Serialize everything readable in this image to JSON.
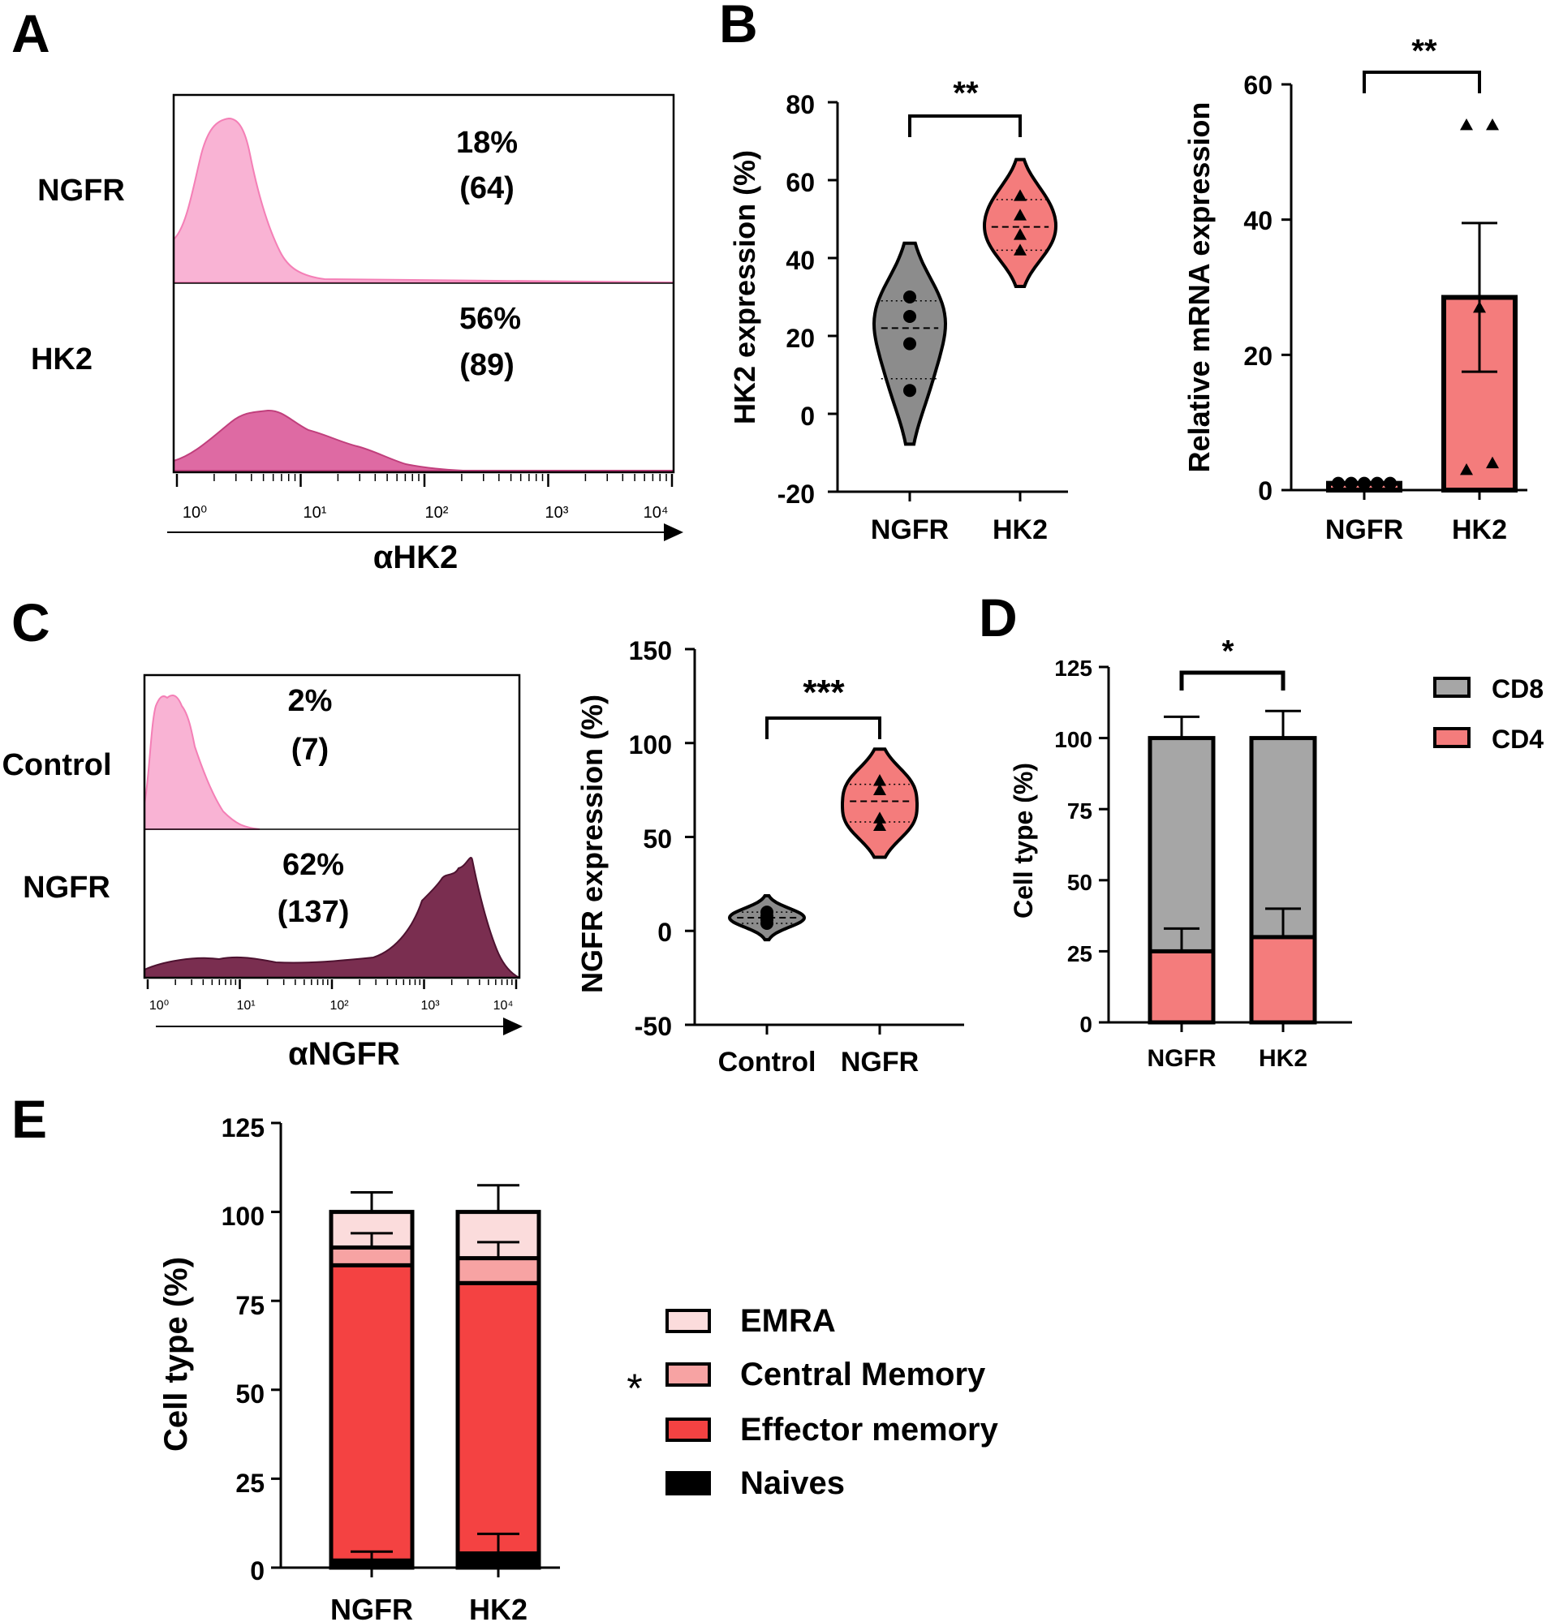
{
  "panel_labels": {
    "A": "A",
    "B": "B",
    "C": "C",
    "D": "D",
    "E": "E"
  },
  "chart_data": [
    {
      "id": "A",
      "type": "histogram",
      "xlabel": "αHK2",
      "xscale": "log",
      "xticks": [
        "10⁰",
        "10¹",
        "10²",
        "10³",
        "10⁴"
      ],
      "series": [
        {
          "name": "NGFR",
          "label_line1": "18%",
          "label_line2": "(64)",
          "color": "#f9a8cf"
        },
        {
          "name": "HK2",
          "label_line1": "56%",
          "label_line2": "(89)",
          "color": "#d6538f"
        }
      ]
    },
    {
      "id": "B1",
      "type": "violin",
      "ylabel": "HK2 expression (%)",
      "ylim": [
        -20,
        80
      ],
      "yticks": [
        "-20",
        "0",
        "20",
        "40",
        "60",
        "80"
      ],
      "categories": [
        "NGFR",
        "HK2"
      ],
      "significance": "**",
      "colors": [
        "#8c8c8c",
        "#f47c7c"
      ],
      "series": [
        {
          "name": "NGFR",
          "values": [
            30,
            25,
            18,
            6
          ],
          "median": 22,
          "q1": 9,
          "q3": 29
        },
        {
          "name": "HK2",
          "values": [
            56,
            51,
            46,
            42
          ],
          "median": 48,
          "q1": 42,
          "q3": 55
        }
      ]
    },
    {
      "id": "B2",
      "type": "bar",
      "ylabel": "Relative mRNA expression",
      "ylim": [
        0,
        60
      ],
      "yticks": [
        "0",
        "20",
        "40",
        "60"
      ],
      "categories": [
        "NGFR",
        "HK2"
      ],
      "significance": "**",
      "values": [
        1,
        28.5
      ],
      "errors": [
        0,
        11
      ],
      "points": [
        [
          1,
          1,
          1,
          1,
          1
        ],
        [
          54,
          54,
          27,
          3,
          4
        ]
      ],
      "colors": [
        "#f47c7c",
        "#f47c7c"
      ]
    },
    {
      "id": "C1",
      "type": "histogram",
      "xlabel": "αNGFR",
      "xscale": "log",
      "xticks": [
        "10⁰",
        "10¹",
        "10²",
        "10³",
        "10⁴"
      ],
      "series": [
        {
          "name": "Control",
          "label_line1": "2%",
          "label_line2": "(7)",
          "color": "#f9a8cf"
        },
        {
          "name": "NGFR",
          "label_line1": "62%",
          "label_line2": "(137)",
          "color": "#7a2e50"
        }
      ]
    },
    {
      "id": "C2",
      "type": "violin",
      "ylabel": "NGFR expression (%)",
      "ylim": [
        -50,
        150
      ],
      "yticks": [
        "-50",
        "0",
        "50",
        "100",
        "150"
      ],
      "categories": [
        "Control",
        "NGFR"
      ],
      "significance": "***",
      "colors": [
        "#8c8c8c",
        "#f47c7c"
      ],
      "series": [
        {
          "name": "Control",
          "values": [
            10,
            8,
            6,
            4
          ],
          "median": 7,
          "q1": 4,
          "q3": 10
        },
        {
          "name": "NGFR",
          "values": [
            80,
            75,
            60,
            56
          ],
          "median": 69,
          "q1": 58,
          "q3": 78
        }
      ]
    },
    {
      "id": "D",
      "type": "stacked_bar",
      "ylabel": "Cell type (%)",
      "ylim": [
        0,
        125
      ],
      "yticks": [
        "0",
        "25",
        "50",
        "75",
        "100",
        "125"
      ],
      "categories": [
        "NGFR",
        "HK2"
      ],
      "significance": "*",
      "series": [
        {
          "name": "CD4",
          "values": [
            25,
            30
          ],
          "errors": [
            8,
            10
          ],
          "color": "#f47c7c"
        },
        {
          "name": "CD8",
          "values": [
            75,
            70
          ],
          "errors": [
            7.5,
            9.5
          ],
          "color": "#a6a6a6"
        }
      ],
      "legend": [
        "CD8",
        "CD4"
      ]
    },
    {
      "id": "E",
      "type": "stacked_bar",
      "ylabel": "Cell type (%)",
      "ylim": [
        0,
        125
      ],
      "yticks": [
        "0",
        "25",
        "50",
        "75",
        "100",
        "125"
      ],
      "categories": [
        "NGFR",
        "HK2"
      ],
      "legend_star": "*",
      "series": [
        {
          "name": "Naives",
          "values": [
            2,
            4
          ],
          "errors": [
            2.5,
            5.5
          ],
          "color": "#000000"
        },
        {
          "name": "Effector memory",
          "values": [
            83,
            76
          ],
          "errors": [
            0,
            0
          ],
          "color": "#f44242"
        },
        {
          "name": "Central Memory",
          "values": [
            5,
            7
          ],
          "errors": [
            4,
            4.5
          ],
          "color": "#f7a3a3"
        },
        {
          "name": "EMRA",
          "values": [
            10,
            13
          ],
          "errors": [
            5.5,
            7.5
          ],
          "color": "#fbdcdc"
        }
      ],
      "legend": [
        "EMRA",
        "Central Memory",
        "Effector memory",
        "Naives"
      ]
    }
  ]
}
